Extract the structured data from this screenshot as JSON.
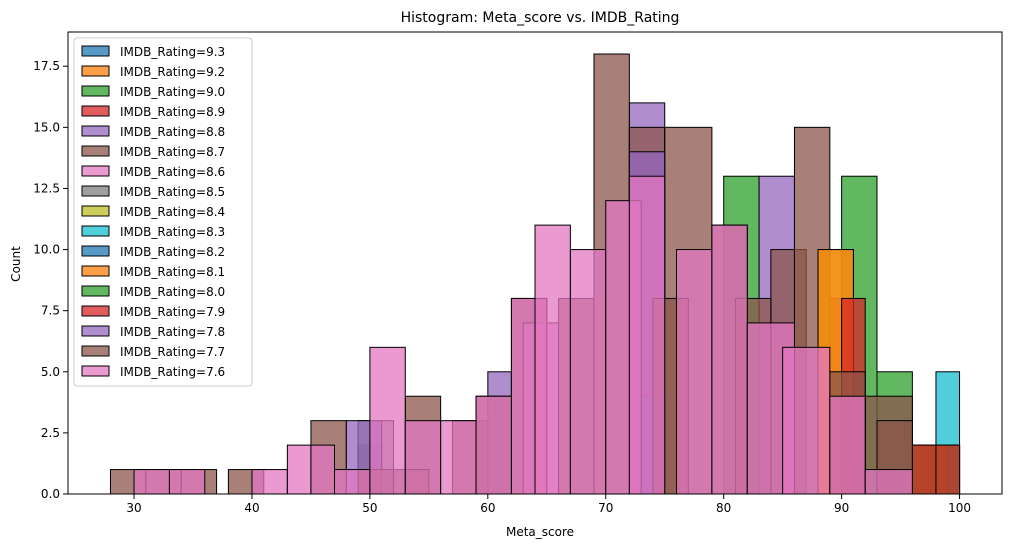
{
  "chart_data": {
    "type": "bar",
    "title": "Histogram: Meta_score vs. IMDB_Rating",
    "xlabel": "Meta_score",
    "ylabel": "Count",
    "xlim": [
      24.4,
      103.6
    ],
    "ylim": [
      0,
      18.9
    ],
    "xticks": [
      30,
      40,
      50,
      60,
      70,
      80,
      90,
      100
    ],
    "yticks": [
      0.0,
      2.5,
      5.0,
      7.5,
      10.0,
      12.5,
      15.0,
      17.5
    ],
    "ytick_labels": [
      "0.0",
      "2.5",
      "5.0",
      "7.5",
      "10.0",
      "12.5",
      "15.0",
      "17.5"
    ],
    "legend_position": "upper-left",
    "bar_alpha": 0.75,
    "series": [
      {
        "name": "IMDB_Rating=9.3",
        "color": "#1f77b4",
        "bins": [
          [
            97,
            100,
            2
          ]
        ]
      },
      {
        "name": "IMDB_Rating=9.2",
        "color": "#ff7f0e",
        "bins": [
          [
            97,
            100,
            2
          ]
        ]
      },
      {
        "name": "IMDB_Rating=9.0",
        "color": "#2ca02c",
        "bins": [
          [
            96,
            100,
            2
          ],
          [
            93,
            96,
            5
          ],
          [
            90,
            93,
            13
          ],
          [
            80,
            83,
            13
          ]
        ]
      },
      {
        "name": "IMDB_Rating=8.9",
        "color": "#d62728",
        "bins": [
          [
            89,
            91,
            8
          ]
        ]
      },
      {
        "name": "IMDB_Rating=8.8",
        "color": "#9467bd",
        "bins": [
          [
            72,
            75,
            16
          ],
          [
            83,
            86,
            13
          ],
          [
            60,
            62,
            5
          ]
        ]
      },
      {
        "name": "IMDB_Rating=8.7",
        "color": "#8c564b",
        "bins": [
          [
            28,
            31,
            1
          ],
          [
            45,
            48,
            3
          ],
          [
            38,
            41,
            1
          ],
          [
            49,
            51,
            2
          ],
          [
            53,
            56,
            4
          ],
          [
            57,
            60,
            3
          ],
          [
            59,
            62,
            4
          ],
          [
            62,
            65,
            8
          ],
          [
            69,
            72,
            18
          ],
          [
            72,
            75,
            15
          ],
          [
            75,
            79,
            15
          ],
          [
            79,
            82,
            11
          ],
          [
            84,
            87,
            10
          ],
          [
            86,
            89,
            15
          ],
          [
            89,
            92,
            5
          ],
          [
            92,
            96,
            4
          ]
        ]
      },
      {
        "name": "IMDB_Rating=8.6",
        "color": "#e377c2",
        "bins": [
          [
            63,
            66,
            7
          ]
        ]
      },
      {
        "name": "IMDB_Rating=8.5",
        "color": "#7f7f7f",
        "bins": [
          [
            49,
            52,
            3
          ]
        ]
      },
      {
        "name": "IMDB_Rating=8.4",
        "color": "#bcbd22",
        "bins": [
          [
            88,
            91,
            10
          ]
        ]
      },
      {
        "name": "IMDB_Rating=8.3",
        "color": "#17becf",
        "bins": [
          [
            98,
            100,
            5
          ]
        ]
      },
      {
        "name": "IMDB_Rating=8.2",
        "color": "#1f77b4",
        "bins": [
          [
            73,
            75,
            4
          ]
        ]
      },
      {
        "name": "IMDB_Rating=8.1",
        "color": "#ff7f0e",
        "bins": [
          [
            88,
            91,
            10
          ],
          [
            96,
            99,
            2
          ]
        ]
      },
      {
        "name": "IMDB_Rating=8.0",
        "color": "#2ca02c",
        "bins": [
          [
            96,
            100,
            2
          ]
        ]
      },
      {
        "name": "IMDB_Rating=7.9",
        "color": "#d62728",
        "bins": [
          [
            90,
            92,
            8
          ],
          [
            96,
            98,
            2
          ],
          [
            98,
            100,
            2
          ]
        ]
      },
      {
        "name": "IMDB_Rating=7.8",
        "color": "#9467bd",
        "bins": [
          [
            48,
            51,
            3
          ],
          [
            72,
            75,
            14
          ]
        ]
      },
      {
        "name": "IMDB_Rating=7.7",
        "color": "#8c564b",
        "bins": [
          [
            31,
            34,
            1
          ],
          [
            34,
            37,
            1
          ],
          [
            49,
            52,
            1
          ],
          [
            52,
            55,
            1
          ],
          [
            66,
            69,
            8
          ],
          [
            74,
            77,
            8
          ],
          [
            81,
            84,
            8
          ],
          [
            89,
            92,
            5
          ],
          [
            93,
            96,
            3
          ]
        ]
      },
      {
        "name": "IMDB_Rating=7.6",
        "color": "#e377c2",
        "bins": [
          [
            30,
            33,
            1
          ],
          [
            33,
            36,
            1
          ],
          [
            40,
            43,
            1
          ],
          [
            43,
            45,
            2
          ],
          [
            45,
            47,
            2
          ],
          [
            47,
            50,
            1
          ],
          [
            50,
            53,
            6
          ],
          [
            53,
            56,
            3
          ],
          [
            56,
            59,
            3
          ],
          [
            59,
            62,
            4
          ],
          [
            62,
            65,
            8
          ],
          [
            64,
            67,
            11
          ],
          [
            67,
            70,
            10
          ],
          [
            70,
            73,
            12
          ],
          [
            72,
            75,
            13
          ],
          [
            76,
            79,
            10
          ],
          [
            79,
            82,
            11
          ],
          [
            82,
            86,
            7
          ],
          [
            85,
            89,
            6
          ],
          [
            89,
            92,
            4
          ],
          [
            92,
            96,
            1
          ]
        ]
      }
    ]
  }
}
